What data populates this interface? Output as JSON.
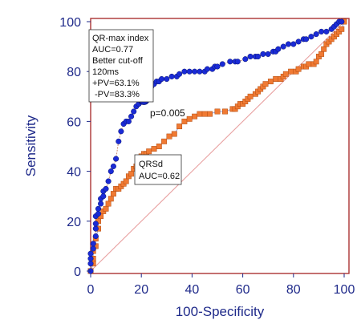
{
  "chart_data": {
    "type": "line",
    "xlabel": "100-Specificity",
    "ylabel": "Sensitivity",
    "xlim": [
      0,
      100
    ],
    "ylim": [
      0,
      100
    ],
    "xticks": [
      "0",
      "20",
      "40",
      "60",
      "80",
      "100"
    ],
    "yticks": [
      "0",
      "20",
      "40",
      "60",
      "80",
      "100"
    ],
    "grid": false,
    "colors": {
      "qrmax": "#1a2bd6",
      "qrsd": "#f07a33",
      "diagonal": "#e8a0a0",
      "axis": "#1f2a8a",
      "frame": "#a33"
    },
    "series": [
      {
        "name": "QR-max index",
        "marker": "circle",
        "points": [
          [
            0,
            0
          ],
          [
            0,
            3
          ],
          [
            0,
            5
          ],
          [
            0,
            7
          ],
          [
            1,
            9
          ],
          [
            1,
            11
          ],
          [
            2,
            14
          ],
          [
            2,
            17
          ],
          [
            2,
            19
          ],
          [
            2,
            22
          ],
          [
            3,
            23
          ],
          [
            3,
            25
          ],
          [
            4,
            27
          ],
          [
            4,
            29
          ],
          [
            5,
            30
          ],
          [
            5,
            32
          ],
          [
            6,
            33
          ],
          [
            7,
            36
          ],
          [
            8,
            40
          ],
          [
            9,
            42
          ],
          [
            10,
            45
          ],
          [
            11,
            52
          ],
          [
            12,
            56
          ],
          [
            13,
            59
          ],
          [
            14,
            60
          ],
          [
            15,
            60
          ],
          [
            16,
            62
          ],
          [
            17,
            64
          ],
          [
            18,
            66
          ],
          [
            19,
            67
          ],
          [
            20,
            68
          ],
          [
            21,
            69
          ],
          [
            22,
            71
          ],
          [
            23,
            72
          ],
          [
            24,
            74
          ],
          [
            25,
            75
          ],
          [
            26,
            76
          ],
          [
            27,
            76
          ],
          [
            28,
            77
          ],
          [
            30,
            77
          ],
          [
            32,
            78
          ],
          [
            34,
            78
          ],
          [
            35,
            79
          ],
          [
            37,
            80
          ],
          [
            39,
            80
          ],
          [
            41,
            80
          ],
          [
            43,
            80
          ],
          [
            45,
            80
          ],
          [
            46,
            81
          ],
          [
            48,
            81
          ],
          [
            49,
            82
          ],
          [
            50,
            82
          ],
          [
            52,
            83
          ],
          [
            55,
            84
          ],
          [
            57,
            84
          ],
          [
            58,
            84
          ],
          [
            61,
            85
          ],
          [
            63,
            86
          ],
          [
            65,
            86
          ],
          [
            66,
            86
          ],
          [
            68,
            87
          ],
          [
            70,
            87
          ],
          [
            72,
            88
          ],
          [
            73,
            88
          ],
          [
            74,
            89
          ],
          [
            76,
            90
          ],
          [
            78,
            91
          ],
          [
            80,
            91
          ],
          [
            82,
            92
          ],
          [
            84,
            93
          ],
          [
            85,
            93
          ],
          [
            87,
            94
          ],
          [
            89,
            95
          ],
          [
            91,
            96
          ],
          [
            93,
            96
          ],
          [
            95,
            97
          ],
          [
            96,
            98
          ],
          [
            97,
            99
          ],
          [
            98,
            100
          ],
          [
            99,
            100
          ]
        ]
      },
      {
        "name": "QRSd",
        "marker": "square",
        "points": [
          [
            0,
            0
          ],
          [
            1,
            3
          ],
          [
            1,
            5
          ],
          [
            1,
            8
          ],
          [
            2,
            10
          ],
          [
            2,
            13
          ],
          [
            3,
            17
          ],
          [
            3,
            20
          ],
          [
            4,
            22
          ],
          [
            5,
            24
          ],
          [
            6,
            25
          ],
          [
            7,
            27
          ],
          [
            8,
            29
          ],
          [
            9,
            31
          ],
          [
            10,
            33
          ],
          [
            11,
            33
          ],
          [
            12,
            34
          ],
          [
            13,
            35
          ],
          [
            14,
            36
          ],
          [
            15,
            38
          ],
          [
            16,
            39
          ],
          [
            17,
            41
          ],
          [
            18,
            42
          ],
          [
            19,
            44
          ],
          [
            20,
            46
          ],
          [
            21,
            47
          ],
          [
            22,
            47
          ],
          [
            23,
            48
          ],
          [
            25,
            49
          ],
          [
            27,
            50
          ],
          [
            29,
            52
          ],
          [
            31,
            54
          ],
          [
            33,
            55
          ],
          [
            35,
            58
          ],
          [
            37,
            60
          ],
          [
            39,
            61
          ],
          [
            41,
            62
          ],
          [
            43,
            63
          ],
          [
            45,
            63
          ],
          [
            47,
            63
          ],
          [
            50,
            64
          ],
          [
            53,
            64
          ],
          [
            56,
            65
          ],
          [
            57,
            65
          ],
          [
            58,
            66
          ],
          [
            59,
            67
          ],
          [
            60,
            67
          ],
          [
            61,
            68
          ],
          [
            62,
            69
          ],
          [
            63,
            70
          ],
          [
            65,
            71
          ],
          [
            66,
            72
          ],
          [
            67,
            73
          ],
          [
            68,
            74
          ],
          [
            69,
            75
          ],
          [
            71,
            76
          ],
          [
            73,
            77
          ],
          [
            75,
            77
          ],
          [
            76,
            78
          ],
          [
            77,
            79
          ],
          [
            79,
            80
          ],
          [
            81,
            80
          ],
          [
            82,
            81
          ],
          [
            84,
            82
          ],
          [
            85,
            82
          ],
          [
            86,
            83
          ],
          [
            88,
            83
          ],
          [
            89,
            84
          ],
          [
            90,
            86
          ],
          [
            91,
            87
          ],
          [
            92,
            89
          ],
          [
            93,
            91
          ],
          [
            94,
            92
          ],
          [
            95,
            93
          ],
          [
            96,
            94
          ],
          [
            97,
            95
          ],
          [
            98,
            96
          ],
          [
            99,
            97
          ],
          [
            100,
            100
          ]
        ]
      }
    ],
    "highlight_point": {
      "series": "QR-max index",
      "x": 21,
      "y": 69
    },
    "annotations": {
      "qrmax_box": [
        "QR-max index",
        "AUC=0.77",
        "Better cut-off",
        "120ms",
        "+PV=63.1%",
        "-PV=83.3%"
      ],
      "qrsd_box": [
        "QRSd",
        "AUC=0.62"
      ],
      "pvalue": "p=0.005"
    }
  }
}
